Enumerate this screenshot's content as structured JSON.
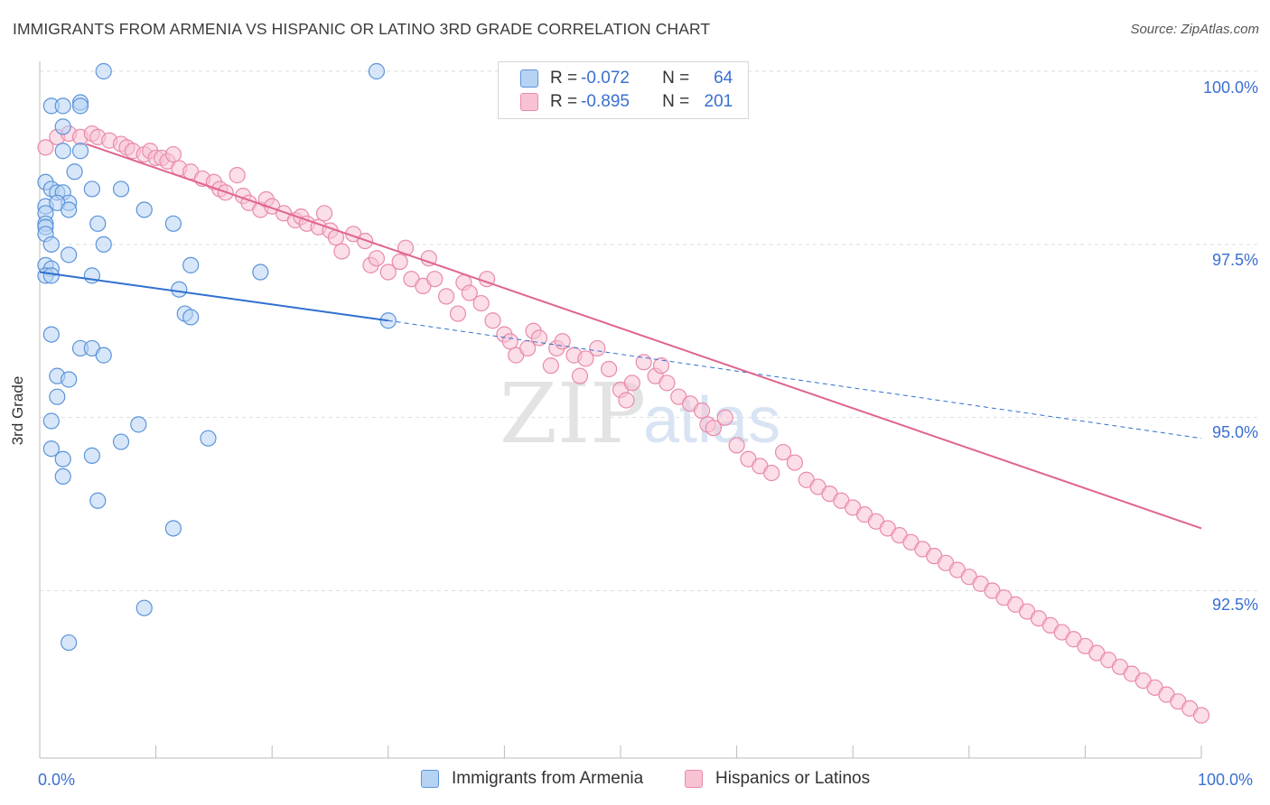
{
  "title": "IMMIGRANTS FROM ARMENIA VS HISPANIC OR LATINO 3RD GRADE CORRELATION CHART",
  "source": "Source: ZipAtlas.com",
  "watermark": {
    "zip": "ZIP",
    "atlas": "atlas"
  },
  "legend": {
    "series1": {
      "r_label": "R =",
      "r_value": "-0.072",
      "n_label": "N =",
      "n_value": "64"
    },
    "series2": {
      "r_label": "R =",
      "r_value": "-0.895",
      "n_label": "N =",
      "n_value": "201"
    }
  },
  "colors": {
    "blue_fill": "#b7d3f4",
    "blue_stroke": "#5b93d9",
    "blue_line": "#2f6fd0",
    "pink_fill": "#f7c3d3",
    "pink_stroke": "#e98aaa",
    "pink_line": "#e0648f",
    "axis_text": "#3a6fd1",
    "grid": "#dddddd"
  },
  "chart_data": {
    "type": "scatter",
    "title": "IMMIGRANTS FROM ARMENIA VS HISPANIC OR LATINO 3RD GRADE CORRELATION CHART",
    "xlabel": "",
    "ylabel": "3rd Grade",
    "xlim": [
      0,
      100
    ],
    "ylim": [
      90.0,
      100.4
    ],
    "x_tick_labels": [
      "0.0%",
      "100.0%"
    ],
    "y_ticks": [
      100.0,
      97.5,
      95.0,
      92.5
    ],
    "y_tick_labels": [
      "100.0%",
      "97.5%",
      "95.0%",
      "92.5%"
    ],
    "grid": true,
    "legend_position": "bottom-center",
    "series": [
      {
        "name": "Immigrants from Armenia",
        "color": "#5b93d9",
        "trend": {
          "x": [
            0,
            30
          ],
          "y": [
            97.1,
            96.4
          ],
          "dashed_to": [
            100,
            94.7
          ]
        },
        "points": [
          [
            5.5,
            100.0
          ],
          [
            29,
            100.0
          ],
          [
            1,
            99.5
          ],
          [
            2,
            99.5
          ],
          [
            3.5,
            99.55
          ],
          [
            3.5,
            99.5
          ],
          [
            2,
            99.2
          ],
          [
            2,
            98.85
          ],
          [
            3.5,
            98.85
          ],
          [
            3,
            98.55
          ],
          [
            0.5,
            98.4
          ],
          [
            1,
            98.3
          ],
          [
            1.5,
            98.25
          ],
          [
            2,
            98.25
          ],
          [
            4.5,
            98.3
          ],
          [
            7,
            98.3
          ],
          [
            9,
            98.0
          ],
          [
            2.5,
            98.1
          ],
          [
            0.5,
            98.05
          ],
          [
            1.5,
            98.1
          ],
          [
            2.5,
            98.0
          ],
          [
            0.5,
            97.95
          ],
          [
            0.5,
            97.8
          ],
          [
            0.5,
            97.75
          ],
          [
            5,
            97.8
          ],
          [
            11.5,
            97.8
          ],
          [
            0.5,
            97.65
          ],
          [
            1,
            97.5
          ],
          [
            5.5,
            97.5
          ],
          [
            2.5,
            97.35
          ],
          [
            0.5,
            97.2
          ],
          [
            1,
            97.15
          ],
          [
            13,
            97.2
          ],
          [
            0.5,
            97.05
          ],
          [
            1,
            97.05
          ],
          [
            4.5,
            97.05
          ],
          [
            19,
            97.1
          ],
          [
            12,
            96.85
          ],
          [
            12.5,
            96.5
          ],
          [
            13,
            96.45
          ],
          [
            1,
            96.2
          ],
          [
            3.5,
            96.0
          ],
          [
            4.5,
            96.0
          ],
          [
            5.5,
            95.9
          ],
          [
            1.5,
            95.6
          ],
          [
            2.5,
            95.55
          ],
          [
            1.5,
            95.3
          ],
          [
            1,
            94.95
          ],
          [
            8.5,
            94.9
          ],
          [
            7,
            94.65
          ],
          [
            14.5,
            94.7
          ],
          [
            1,
            94.55
          ],
          [
            2,
            94.4
          ],
          [
            4.5,
            94.45
          ],
          [
            2,
            94.15
          ],
          [
            5,
            93.8
          ],
          [
            11.5,
            93.4
          ],
          [
            9,
            92.25
          ],
          [
            2.5,
            91.75
          ],
          [
            30,
            96.4
          ]
        ]
      },
      {
        "name": "Hispanics or Latinos",
        "color": "#e98aaa",
        "trend": {
          "x": [
            4,
            100
          ],
          "y": [
            98.95,
            93.4
          ]
        },
        "points": [
          [
            0.5,
            98.9
          ],
          [
            1.5,
            99.05
          ],
          [
            2.5,
            99.1
          ],
          [
            3.5,
            99.05
          ],
          [
            4.5,
            99.1
          ],
          [
            5,
            99.05
          ],
          [
            6,
            99.0
          ],
          [
            7,
            98.95
          ],
          [
            7.5,
            98.9
          ],
          [
            8,
            98.85
          ],
          [
            9,
            98.8
          ],
          [
            9.5,
            98.85
          ],
          [
            10,
            98.75
          ],
          [
            10.5,
            98.75
          ],
          [
            11,
            98.7
          ],
          [
            11.5,
            98.8
          ],
          [
            12,
            98.6
          ],
          [
            13,
            98.55
          ],
          [
            14,
            98.45
          ],
          [
            15,
            98.4
          ],
          [
            15.5,
            98.3
          ],
          [
            16,
            98.25
          ],
          [
            17,
            98.5
          ],
          [
            17.5,
            98.2
          ],
          [
            18,
            98.1
          ],
          [
            19,
            98.0
          ],
          [
            19.5,
            98.15
          ],
          [
            20,
            98.05
          ],
          [
            21,
            97.95
          ],
          [
            22,
            97.85
          ],
          [
            22.5,
            97.9
          ],
          [
            23,
            97.8
          ],
          [
            24,
            97.75
          ],
          [
            24.5,
            97.95
          ],
          [
            25,
            97.7
          ],
          [
            25.5,
            97.6
          ],
          [
            26,
            97.4
          ],
          [
            27,
            97.65
          ],
          [
            28,
            97.55
          ],
          [
            28.5,
            97.2
          ],
          [
            29,
            97.3
          ],
          [
            30,
            97.1
          ],
          [
            31,
            97.25
          ],
          [
            31.5,
            97.45
          ],
          [
            32,
            97.0
          ],
          [
            33,
            96.9
          ],
          [
            33.5,
            97.3
          ],
          [
            34,
            97.0
          ],
          [
            35,
            96.75
          ],
          [
            36,
            96.5
          ],
          [
            36.5,
            96.95
          ],
          [
            37,
            96.8
          ],
          [
            38,
            96.65
          ],
          [
            38.5,
            97.0
          ],
          [
            39,
            96.4
          ],
          [
            40,
            96.2
          ],
          [
            40.5,
            96.1
          ],
          [
            41,
            95.9
          ],
          [
            42,
            96.0
          ],
          [
            42.5,
            96.25
          ],
          [
            43,
            96.15
          ],
          [
            44,
            95.75
          ],
          [
            44.5,
            96.0
          ],
          [
            45,
            96.1
          ],
          [
            46,
            95.9
          ],
          [
            46.5,
            95.6
          ],
          [
            47,
            95.85
          ],
          [
            48,
            96.0
          ],
          [
            49,
            95.7
          ],
          [
            50,
            95.4
          ],
          [
            50.5,
            95.25
          ],
          [
            51,
            95.5
          ],
          [
            52,
            95.8
          ],
          [
            53,
            95.6
          ],
          [
            53.5,
            95.75
          ],
          [
            54,
            95.5
          ],
          [
            55,
            95.3
          ],
          [
            56,
            95.2
          ],
          [
            57,
            95.1
          ],
          [
            57.5,
            94.9
          ],
          [
            58,
            94.85
          ],
          [
            59,
            95.0
          ],
          [
            60,
            94.6
          ],
          [
            61,
            94.4
          ],
          [
            62,
            94.3
          ],
          [
            63,
            94.2
          ],
          [
            64,
            94.5
          ],
          [
            65,
            94.35
          ],
          [
            66,
            94.1
          ],
          [
            67,
            94.0
          ],
          [
            68,
            93.9
          ],
          [
            69,
            93.8
          ],
          [
            70,
            93.7
          ],
          [
            71,
            93.6
          ],
          [
            72,
            93.5
          ],
          [
            73,
            93.4
          ],
          [
            74,
            93.3
          ],
          [
            75,
            93.2
          ],
          [
            76,
            93.1
          ],
          [
            77,
            93.0
          ],
          [
            78,
            92.9
          ],
          [
            79,
            92.8
          ],
          [
            80,
            92.7
          ],
          [
            81,
            92.6
          ],
          [
            82,
            92.5
          ],
          [
            83,
            92.4
          ],
          [
            84,
            92.3
          ],
          [
            85,
            92.2
          ],
          [
            86,
            92.1
          ],
          [
            87,
            92.0
          ],
          [
            88,
            91.9
          ],
          [
            89,
            91.8
          ],
          [
            90,
            91.7
          ],
          [
            91,
            91.6
          ],
          [
            92,
            91.5
          ],
          [
            93,
            91.4
          ],
          [
            94,
            91.3
          ],
          [
            95,
            91.2
          ],
          [
            96,
            91.1
          ],
          [
            97,
            91.0
          ],
          [
            98,
            90.9
          ],
          [
            99,
            90.8
          ],
          [
            100,
            90.7
          ]
        ]
      }
    ]
  },
  "x_axis_labels": {
    "left": "0.0%",
    "right": "100.0%"
  },
  "y_axis_label": "3rd Grade",
  "y_tick_labels": [
    "100.0%",
    "97.5%",
    "95.0%",
    "92.5%"
  ],
  "bottom_legend": {
    "series1": "Immigrants from Armenia",
    "series2": "Hispanics or Latinos"
  }
}
